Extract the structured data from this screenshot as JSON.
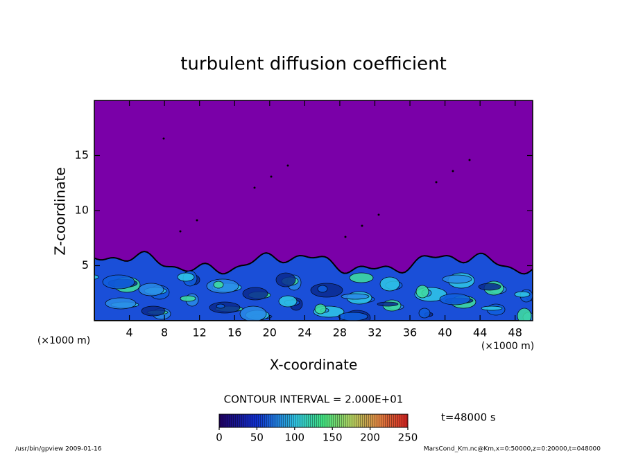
{
  "chart_data": {
    "type": "contour",
    "title": "turbulent diffusion coefficient",
    "xlabel": "X-coordinate",
    "ylabel": "Z-coordinate",
    "x_unit_label": "(×1000 m)",
    "y_unit_label": "(×1000 m)",
    "xlim": [
      0,
      50
    ],
    "xticks": [
      4,
      8,
      12,
      16,
      20,
      24,
      28,
      32,
      36,
      40,
      44,
      48
    ],
    "ylim": [
      0,
      20
    ],
    "yticks": [
      5,
      10,
      15
    ],
    "contour_interval_label": "CONTOUR INTERVAL = 2.000E+01",
    "time_label": "t=48000 s",
    "colorbar": {
      "lim": [
        0,
        250
      ],
      "ticks": [
        0,
        50,
        100,
        150,
        200,
        250
      ]
    }
  },
  "footer": {
    "left": "/usr/bin/gpview  2009-01-16",
    "right": "MarsCond_Km.nc@Km,x=0:50000,z=0:20000,t=048000"
  }
}
